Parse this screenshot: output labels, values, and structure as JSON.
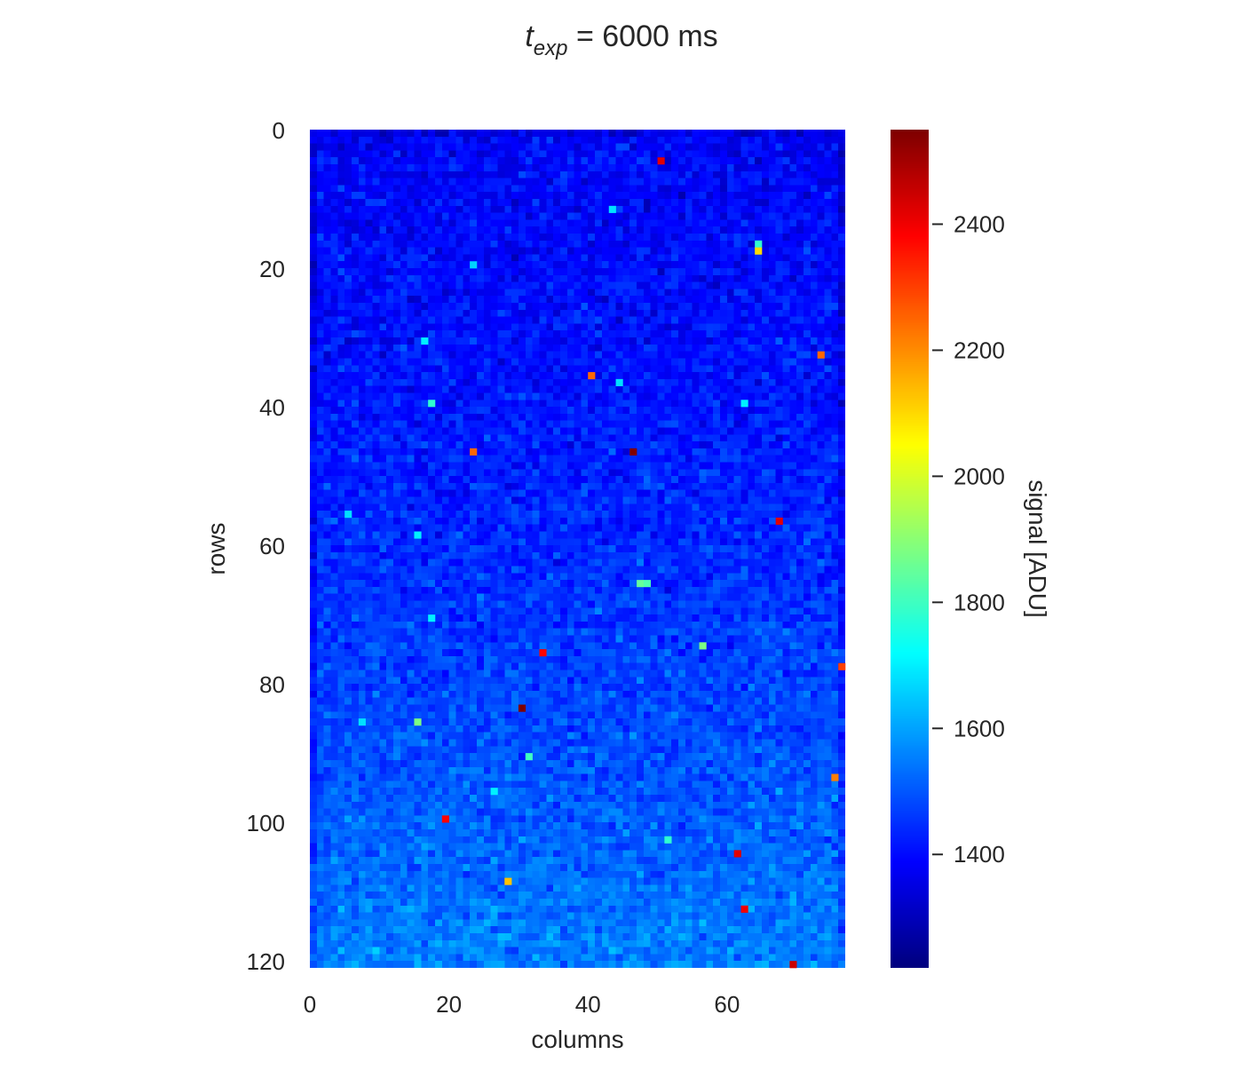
{
  "chart_data": {
    "type": "heatmap",
    "title": {
      "symbol": "t",
      "subscript": "exp",
      "rest": " = 6000 ms"
    },
    "xlabel": "columns",
    "ylabel": "rows",
    "xlim": [
      0,
      77
    ],
    "ylim": [
      121,
      0
    ],
    "y_inverted": true,
    "x_ticks": [
      "0",
      "20",
      "40",
      "60"
    ],
    "y_ticks": [
      "0",
      "20",
      "40",
      "60",
      "80",
      "100",
      "120"
    ],
    "grid": false,
    "colormap": "jet",
    "colorbar": {
      "label": "signal [ADU]",
      "range": [
        1220,
        2550
      ],
      "ticks": [
        "1400",
        "1600",
        "1800",
        "2000",
        "2200",
        "2400"
      ],
      "orientation": "vertical",
      "placement": "right"
    },
    "field": {
      "description_free": true,
      "n_cols": 77,
      "n_rows": 121,
      "row_mean_top": 1385,
      "row_mean_bottom": 1555,
      "noise": 35
    },
    "hot_pixels": [
      {
        "col": 50,
        "row": 4,
        "value": 2420
      },
      {
        "col": 43,
        "row": 11,
        "value": 1680
      },
      {
        "col": 64,
        "row": 16,
        "value": 1780
      },
      {
        "col": 64,
        "row": 17,
        "value": 2100
      },
      {
        "col": 23,
        "row": 19,
        "value": 1660
      },
      {
        "col": 16,
        "row": 30,
        "value": 1700
      },
      {
        "col": 73,
        "row": 32,
        "value": 2250
      },
      {
        "col": 40,
        "row": 35,
        "value": 2250
      },
      {
        "col": 44,
        "row": 36,
        "value": 1680
      },
      {
        "col": 17,
        "row": 39,
        "value": 1780
      },
      {
        "col": 62,
        "row": 39,
        "value": 1700
      },
      {
        "col": 23,
        "row": 46,
        "value": 2250
      },
      {
        "col": 46,
        "row": 46,
        "value": 2550
      },
      {
        "col": 5,
        "row": 55,
        "value": 1680
      },
      {
        "col": 67,
        "row": 56,
        "value": 2420
      },
      {
        "col": 15,
        "row": 58,
        "value": 1700
      },
      {
        "col": 47,
        "row": 65,
        "value": 1850
      },
      {
        "col": 48,
        "row": 65,
        "value": 1820
      },
      {
        "col": 17,
        "row": 70,
        "value": 1700
      },
      {
        "col": 56,
        "row": 74,
        "value": 1880
      },
      {
        "col": 33,
        "row": 75,
        "value": 2380
      },
      {
        "col": 76,
        "row": 77,
        "value": 2300
      },
      {
        "col": 30,
        "row": 83,
        "value": 2550
      },
      {
        "col": 15,
        "row": 85,
        "value": 1880
      },
      {
        "col": 7,
        "row": 85,
        "value": 1680
      },
      {
        "col": 31,
        "row": 90,
        "value": 1800
      },
      {
        "col": 75,
        "row": 93,
        "value": 2220
      },
      {
        "col": 26,
        "row": 95,
        "value": 1700
      },
      {
        "col": 19,
        "row": 99,
        "value": 2380
      },
      {
        "col": 51,
        "row": 102,
        "value": 1780
      },
      {
        "col": 61,
        "row": 104,
        "value": 2420
      },
      {
        "col": 28,
        "row": 108,
        "value": 2130
      },
      {
        "col": 62,
        "row": 112,
        "value": 2400
      },
      {
        "col": 69,
        "row": 120,
        "value": 2450
      }
    ]
  }
}
